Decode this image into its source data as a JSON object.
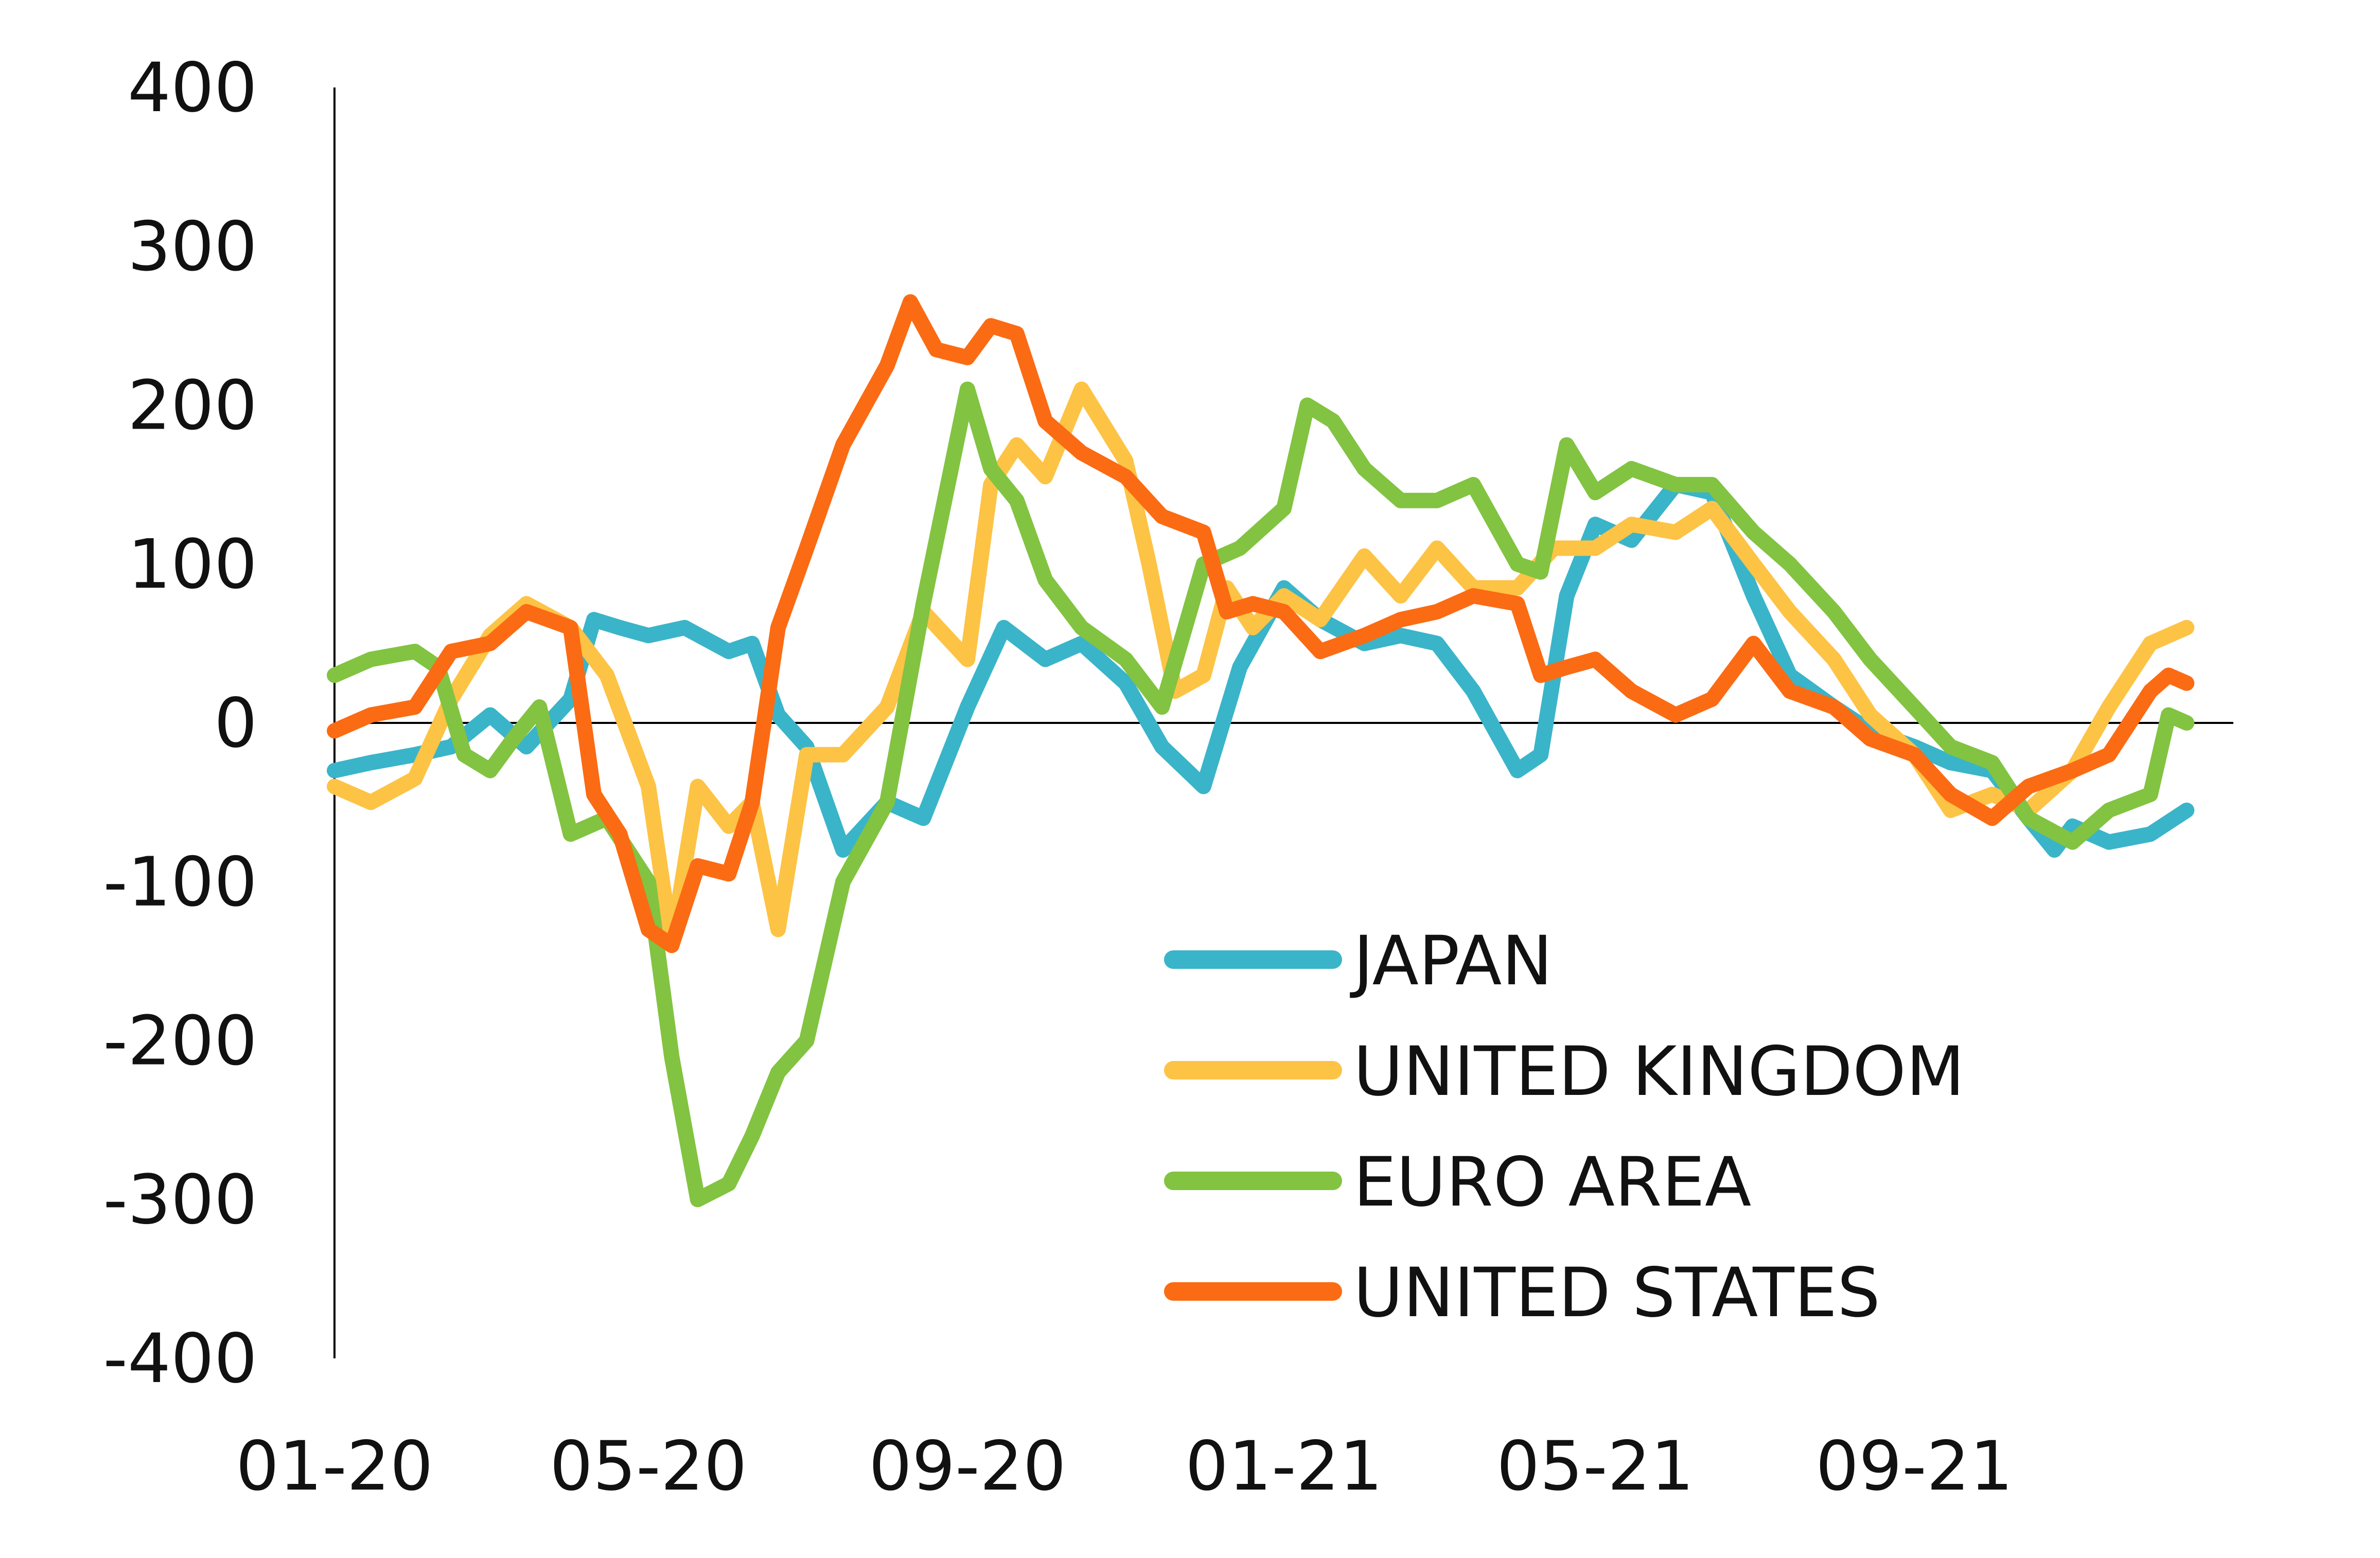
{
  "chart_data": {
    "type": "line",
    "title": "",
    "xlabel": "",
    "ylabel": "",
    "ylim": [
      -400,
      400
    ],
    "yticks": [
      400,
      300,
      200,
      100,
      0,
      -100,
      -200,
      -300,
      -400
    ],
    "xlim": [
      "2020-01",
      "2021-12"
    ],
    "xticks": [
      {
        "x": "2020-01",
        "label": "01-20"
      },
      {
        "x": "2020-05",
        "label": "05-20"
      },
      {
        "x": "2020-09",
        "label": "09-20"
      },
      {
        "x": "2021-01",
        "label": "01-21"
      },
      {
        "x": "2021-05",
        "label": "05-21"
      },
      {
        "x": "2021-09",
        "label": "09-21"
      }
    ],
    "grid": false,
    "legend": "bottom-right",
    "series": [
      {
        "name": "JAPAN",
        "color": "#3AB4C9",
        "points": [
          [
            "2020-01-01",
            -30
          ],
          [
            "2020-01-15",
            -25
          ],
          [
            "2020-02-01",
            -20
          ],
          [
            "2020-02-15",
            -15
          ],
          [
            "2020-03-01",
            5
          ],
          [
            "2020-03-15",
            -15
          ],
          [
            "2020-04-01",
            15
          ],
          [
            "2020-04-10",
            65
          ],
          [
            "2020-04-20",
            60
          ],
          [
            "2020-05-01",
            55
          ],
          [
            "2020-05-15",
            60
          ],
          [
            "2020-06-01",
            45
          ],
          [
            "2020-06-10",
            50
          ],
          [
            "2020-06-20",
            5
          ],
          [
            "2020-07-01",
            -15
          ],
          [
            "2020-07-15",
            -80
          ],
          [
            "2020-08-01",
            -50
          ],
          [
            "2020-08-15",
            -60
          ],
          [
            "2020-09-01",
            10
          ],
          [
            "2020-09-15",
            60
          ],
          [
            "2020-10-01",
            40
          ],
          [
            "2020-10-15",
            50
          ],
          [
            "2020-11-01",
            25
          ],
          [
            "2020-11-15",
            -15
          ],
          [
            "2020-12-01",
            -40
          ],
          [
            "2020-12-15",
            35
          ],
          [
            "2021-01-01",
            85
          ],
          [
            "2021-01-15",
            65
          ],
          [
            "2021-02-01",
            50
          ],
          [
            "2021-02-15",
            55
          ],
          [
            "2021-03-01",
            50
          ],
          [
            "2021-03-15",
            20
          ],
          [
            "2021-04-01",
            -30
          ],
          [
            "2021-04-10",
            -20
          ],
          [
            "2021-04-20",
            80
          ],
          [
            "2021-05-01",
            125
          ],
          [
            "2021-05-15",
            115
          ],
          [
            "2021-06-01",
            150
          ],
          [
            "2021-06-15",
            145
          ],
          [
            "2021-07-01",
            80
          ],
          [
            "2021-07-15",
            30
          ],
          [
            "2021-08-01",
            10
          ],
          [
            "2021-08-15",
            -5
          ],
          [
            "2021-09-01",
            -15
          ],
          [
            "2021-09-15",
            -25
          ],
          [
            "2021-10-01",
            -30
          ],
          [
            "2021-10-15",
            -60
          ],
          [
            "2021-10-25",
            -80
          ],
          [
            "2021-11-01",
            -65
          ],
          [
            "2021-11-15",
            -75
          ],
          [
            "2021-12-01",
            -70
          ],
          [
            "2021-12-15",
            -55
          ]
        ]
      },
      {
        "name": "UNITED KINGDOM",
        "color": "#FDC345",
        "points": [
          [
            "2020-01-01",
            -40
          ],
          [
            "2020-01-15",
            -50
          ],
          [
            "2020-02-01",
            -35
          ],
          [
            "2020-02-15",
            15
          ],
          [
            "2020-03-01",
            55
          ],
          [
            "2020-03-15",
            75
          ],
          [
            "2020-04-01",
            60
          ],
          [
            "2020-04-15",
            30
          ],
          [
            "2020-05-01",
            -40
          ],
          [
            "2020-05-10",
            -140
          ],
          [
            "2020-05-20",
            -40
          ],
          [
            "2020-06-01",
            -65
          ],
          [
            "2020-06-10",
            -50
          ],
          [
            "2020-06-20",
            -130
          ],
          [
            "2020-07-01",
            -20
          ],
          [
            "2020-07-15",
            -20
          ],
          [
            "2020-08-01",
            10
          ],
          [
            "2020-08-15",
            70
          ],
          [
            "2020-09-01",
            40
          ],
          [
            "2020-09-10",
            150
          ],
          [
            "2020-09-20",
            175
          ],
          [
            "2020-10-01",
            155
          ],
          [
            "2020-10-15",
            210
          ],
          [
            "2020-11-01",
            165
          ],
          [
            "2020-11-10",
            100
          ],
          [
            "2020-11-20",
            20
          ],
          [
            "2020-12-01",
            30
          ],
          [
            "2020-12-10",
            85
          ],
          [
            "2020-12-20",
            60
          ],
          [
            "2021-01-01",
            80
          ],
          [
            "2021-01-15",
            65
          ],
          [
            "2021-02-01",
            105
          ],
          [
            "2021-02-15",
            80
          ],
          [
            "2021-03-01",
            110
          ],
          [
            "2021-03-15",
            85
          ],
          [
            "2021-04-01",
            85
          ],
          [
            "2021-04-15",
            110
          ],
          [
            "2021-05-01",
            110
          ],
          [
            "2021-05-15",
            125
          ],
          [
            "2021-06-01",
            120
          ],
          [
            "2021-06-15",
            135
          ],
          [
            "2021-07-01",
            100
          ],
          [
            "2021-07-15",
            70
          ],
          [
            "2021-08-01",
            40
          ],
          [
            "2021-08-15",
            5
          ],
          [
            "2021-09-01",
            -20
          ],
          [
            "2021-09-15",
            -55
          ],
          [
            "2021-10-01",
            -45
          ],
          [
            "2021-10-15",
            -55
          ],
          [
            "2021-11-01",
            -30
          ],
          [
            "2021-11-15",
            10
          ],
          [
            "2021-12-01",
            50
          ],
          [
            "2021-12-15",
            60
          ]
        ]
      },
      {
        "name": "EURO AREA",
        "color": "#82C341",
        "points": [
          [
            "2020-01-01",
            30
          ],
          [
            "2020-01-15",
            40
          ],
          [
            "2020-02-01",
            45
          ],
          [
            "2020-02-10",
            35
          ],
          [
            "2020-02-20",
            -20
          ],
          [
            "2020-03-01",
            -30
          ],
          [
            "2020-03-10",
            -10
          ],
          [
            "2020-03-20",
            10
          ],
          [
            "2020-04-01",
            -70
          ],
          [
            "2020-04-15",
            -60
          ],
          [
            "2020-05-01",
            -100
          ],
          [
            "2020-05-10",
            -210
          ],
          [
            "2020-05-20",
            -300
          ],
          [
            "2020-06-01",
            -290
          ],
          [
            "2020-06-10",
            -260
          ],
          [
            "2020-06-20",
            -220
          ],
          [
            "2020-07-01",
            -200
          ],
          [
            "2020-07-15",
            -100
          ],
          [
            "2020-08-01",
            -50
          ],
          [
            "2020-08-15",
            75
          ],
          [
            "2020-09-01",
            210
          ],
          [
            "2020-09-10",
            160
          ],
          [
            "2020-09-20",
            140
          ],
          [
            "2020-10-01",
            90
          ],
          [
            "2020-10-15",
            60
          ],
          [
            "2020-11-01",
            40
          ],
          [
            "2020-11-15",
            10
          ],
          [
            "2020-12-01",
            100
          ],
          [
            "2020-12-15",
            110
          ],
          [
            "2021-01-01",
            135
          ],
          [
            "2021-01-10",
            200
          ],
          [
            "2021-01-20",
            190
          ],
          [
            "2021-02-01",
            160
          ],
          [
            "2021-02-15",
            140
          ],
          [
            "2021-03-01",
            140
          ],
          [
            "2021-03-15",
            150
          ],
          [
            "2021-04-01",
            100
          ],
          [
            "2021-04-10",
            95
          ],
          [
            "2021-04-20",
            175
          ],
          [
            "2021-05-01",
            145
          ],
          [
            "2021-05-15",
            160
          ],
          [
            "2021-06-01",
            150
          ],
          [
            "2021-06-15",
            150
          ],
          [
            "2021-07-01",
            120
          ],
          [
            "2021-07-15",
            100
          ],
          [
            "2021-08-01",
            70
          ],
          [
            "2021-08-15",
            40
          ],
          [
            "2021-09-01",
            10
          ],
          [
            "2021-09-15",
            -15
          ],
          [
            "2021-10-01",
            -25
          ],
          [
            "2021-10-15",
            -60
          ],
          [
            "2021-11-01",
            -75
          ],
          [
            "2021-11-15",
            -55
          ],
          [
            "2021-12-01",
            -45
          ],
          [
            "2021-12-08",
            5
          ],
          [
            "2021-12-15",
            0
          ]
        ]
      },
      {
        "name": "UNITED STATES",
        "color": "#FB6B13",
        "points": [
          [
            "2020-01-01",
            -5
          ],
          [
            "2020-01-15",
            5
          ],
          [
            "2020-02-01",
            10
          ],
          [
            "2020-02-15",
            45
          ],
          [
            "2020-03-01",
            50
          ],
          [
            "2020-03-15",
            70
          ],
          [
            "2020-04-01",
            60
          ],
          [
            "2020-04-10",
            -45
          ],
          [
            "2020-04-20",
            -70
          ],
          [
            "2020-05-01",
            -130
          ],
          [
            "2020-05-10",
            -140
          ],
          [
            "2020-05-20",
            -90
          ],
          [
            "2020-06-01",
            -95
          ],
          [
            "2020-06-10",
            -50
          ],
          [
            "2020-06-20",
            60
          ],
          [
            "2020-07-01",
            110
          ],
          [
            "2020-07-15",
            175
          ],
          [
            "2020-08-01",
            225
          ],
          [
            "2020-08-10",
            265
          ],
          [
            "2020-08-20",
            235
          ],
          [
            "2020-09-01",
            230
          ],
          [
            "2020-09-10",
            250
          ],
          [
            "2020-09-20",
            245
          ],
          [
            "2020-10-01",
            190
          ],
          [
            "2020-10-15",
            170
          ],
          [
            "2020-11-01",
            155
          ],
          [
            "2020-11-15",
            130
          ],
          [
            "2020-12-01",
            120
          ],
          [
            "2020-12-10",
            70
          ],
          [
            "2020-12-20",
            75
          ],
          [
            "2021-01-01",
            70
          ],
          [
            "2021-01-15",
            45
          ],
          [
            "2021-02-01",
            55
          ],
          [
            "2021-02-15",
            65
          ],
          [
            "2021-03-01",
            70
          ],
          [
            "2021-03-15",
            80
          ],
          [
            "2021-04-01",
            75
          ],
          [
            "2021-04-10",
            30
          ],
          [
            "2021-04-20",
            35
          ],
          [
            "2021-05-01",
            40
          ],
          [
            "2021-05-15",
            20
          ],
          [
            "2021-06-01",
            5
          ],
          [
            "2021-06-15",
            15
          ],
          [
            "2021-07-01",
            50
          ],
          [
            "2021-07-15",
            20
          ],
          [
            "2021-08-01",
            10
          ],
          [
            "2021-08-15",
            -10
          ],
          [
            "2021-09-01",
            -20
          ],
          [
            "2021-09-15",
            -45
          ],
          [
            "2021-10-01",
            -60
          ],
          [
            "2021-10-15",
            -40
          ],
          [
            "2021-11-01",
            -30
          ],
          [
            "2021-11-15",
            -20
          ],
          [
            "2021-12-01",
            20
          ],
          [
            "2021-12-08",
            30
          ],
          [
            "2021-12-15",
            25
          ]
        ]
      }
    ]
  }
}
